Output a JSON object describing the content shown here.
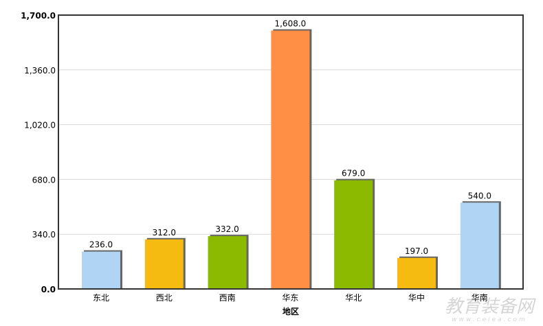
{
  "chart_data": {
    "type": "bar",
    "title": "",
    "xlabel": "地区",
    "ylabel": "",
    "categories": [
      "东北",
      "西北",
      "西南",
      "华东",
      "华北",
      "华中",
      "华南"
    ],
    "values": [
      236.0,
      312.0,
      332.0,
      1608.0,
      679.0,
      197.0,
      540.0
    ],
    "value_labels": [
      "236.0",
      "312.0",
      "332.0",
      "1,608.0",
      "679.0",
      "197.0",
      "540.0"
    ],
    "colors": [
      "#b0d4f4",
      "#f6bb10",
      "#8cba00",
      "#ff8f45",
      "#8cba00",
      "#f6bb10",
      "#b0d4f4"
    ],
    "ylim": [
      0,
      1700
    ],
    "yticks": [
      0,
      340,
      680,
      1020,
      1360,
      1700
    ],
    "ytick_labels": [
      "0.0",
      "340.0",
      "680.0",
      "1,020.0",
      "1,360.0",
      "1,700.0"
    ],
    "grid": true,
    "legend": "none"
  },
  "watermark": {
    "name": "教育装备网",
    "url": "www.ceiea.com"
  }
}
